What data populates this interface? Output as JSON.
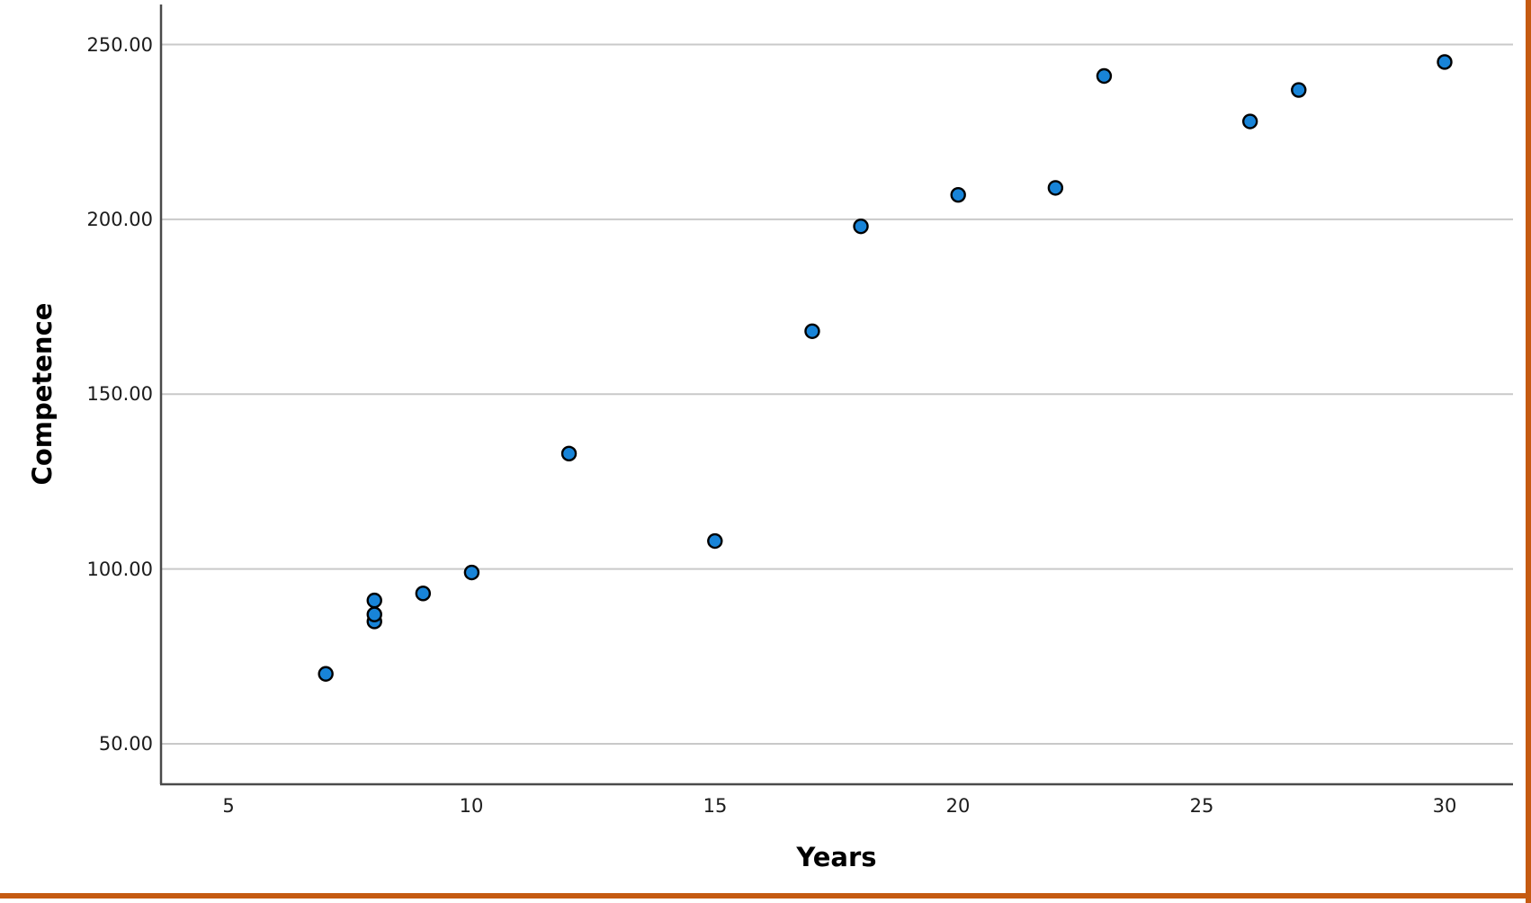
{
  "chart_data": {
    "type": "scatter",
    "title": "",
    "xlabel": "Years",
    "ylabel": "Competence",
    "x_ticks": {
      "values": [
        5,
        10,
        15,
        20,
        25,
        30
      ],
      "labels": [
        "5",
        "10",
        "15",
        "20",
        "25",
        "30"
      ]
    },
    "y_ticks": {
      "values": [
        50,
        100,
        150,
        200,
        250
      ],
      "labels": [
        "50.00",
        "100.00",
        "150.00",
        "200.00",
        "250.00"
      ]
    },
    "xlim": [
      3.6,
      31.4
    ],
    "ylim": [
      38.5,
      262.5
    ],
    "grid": "horizontal",
    "legend": "none",
    "points": [
      {
        "x": 7,
        "y": 70
      },
      {
        "x": 8,
        "y": 85
      },
      {
        "x": 8,
        "y": 87
      },
      {
        "x": 8,
        "y": 91
      },
      {
        "x": 9,
        "y": 93
      },
      {
        "x": 10,
        "y": 99
      },
      {
        "x": 12,
        "y": 133
      },
      {
        "x": 15,
        "y": 108
      },
      {
        "x": 17,
        "y": 168
      },
      {
        "x": 18,
        "y": 198
      },
      {
        "x": 20,
        "y": 207
      },
      {
        "x": 22,
        "y": 209
      },
      {
        "x": 23,
        "y": 241
      },
      {
        "x": 26,
        "y": 228
      },
      {
        "x": 27,
        "y": 237
      },
      {
        "x": 30,
        "y": 245
      }
    ],
    "colors": {
      "point_fill": "#1884d8",
      "point_stroke": "#000000",
      "grid_line": "#c9c9c9",
      "axis_line": "#4a4a4a",
      "tick_text": "#1c1c1c",
      "frame_accent": "#c55a11"
    }
  }
}
